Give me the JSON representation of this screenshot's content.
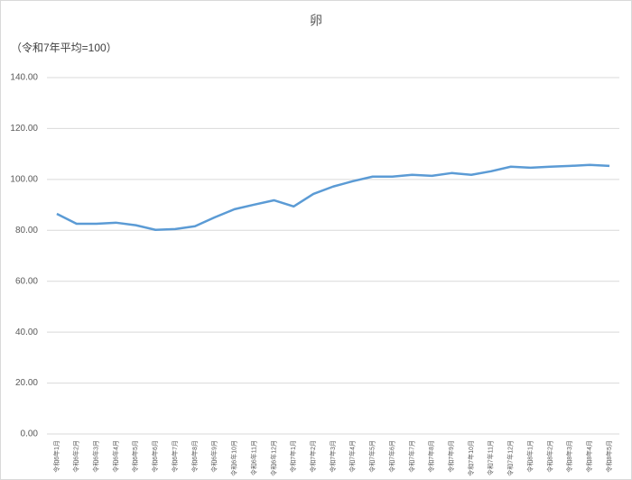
{
  "chart_data": {
    "type": "line",
    "title": "卵",
    "subtitle": "（令和7年平均=100）",
    "categories": [
      "令和6年1月",
      "令和6年2月",
      "令和6年3月",
      "令和6年4月",
      "令和6年5月",
      "令和6年6月",
      "令和6年7月",
      "令和6年8月",
      "令和6年9月",
      "令和6年10月",
      "令和6年11月",
      "令和6年12月",
      "令和7年1月",
      "令和7年2月",
      "令和7年3月",
      "令和7年4月",
      "令和7年5月",
      "令和7年6月",
      "令和7年7月",
      "令和7年8月",
      "令和7年9月",
      "令和7年10月",
      "令和7年11月",
      "令和7年12月",
      "令和8年1月",
      "令和8年2月",
      "令和8年3月",
      "令和8年4月",
      "令和8年5月"
    ],
    "values": [
      86.5,
      82.6,
      82.6,
      83.0,
      82.0,
      80.2,
      80.5,
      81.6,
      85.1,
      88.3,
      90.1,
      91.8,
      89.4,
      94.3,
      97.2,
      99.3,
      101.1,
      101.1,
      101.8,
      101.4,
      102.5,
      101.8,
      103.2,
      105.0,
      104.6,
      105.0,
      105.3,
      105.7,
      105.3
    ],
    "color": "#5b9bd5",
    "ylim": [
      0,
      140
    ],
    "yticks": [
      {
        "value": 0,
        "label": "0.00"
      },
      {
        "value": 20,
        "label": "20.00"
      },
      {
        "value": 40,
        "label": "40.00"
      },
      {
        "value": 60,
        "label": "60.00"
      },
      {
        "value": 80,
        "label": "80.00"
      },
      {
        "value": 100,
        "label": "100.00"
      },
      {
        "value": 120,
        "label": "120.00"
      },
      {
        "value": 140,
        "label": "140.00"
      }
    ],
    "grid": true
  }
}
